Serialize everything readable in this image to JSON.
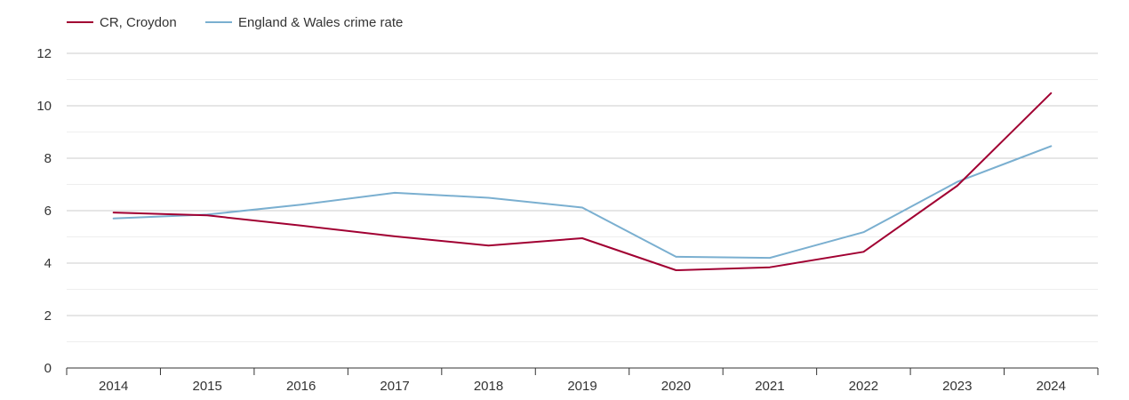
{
  "chart_data": {
    "type": "line",
    "title": "",
    "xlabel": "",
    "ylabel": "",
    "categories": [
      "2014",
      "2015",
      "2016",
      "2017",
      "2018",
      "2019",
      "2020",
      "2021",
      "2022",
      "2023",
      "2024"
    ],
    "ylim": [
      0,
      12
    ],
    "yticks": [
      "0",
      "2",
      "4",
      "6",
      "8",
      "10",
      "12"
    ],
    "grid": true,
    "legend_position": "top-left",
    "series": [
      {
        "name": "CR, Croydon",
        "color": "#a10032",
        "values": [
          5.93,
          5.82,
          5.43,
          5.02,
          4.67,
          4.95,
          3.73,
          3.84,
          4.43,
          6.95,
          10.48
        ]
      },
      {
        "name": "England & Wales crime rate",
        "color": "#7aafd0",
        "values": [
          5.7,
          5.85,
          6.23,
          6.68,
          6.49,
          6.12,
          4.24,
          4.2,
          5.18,
          7.1,
          8.46
        ]
      }
    ]
  }
}
